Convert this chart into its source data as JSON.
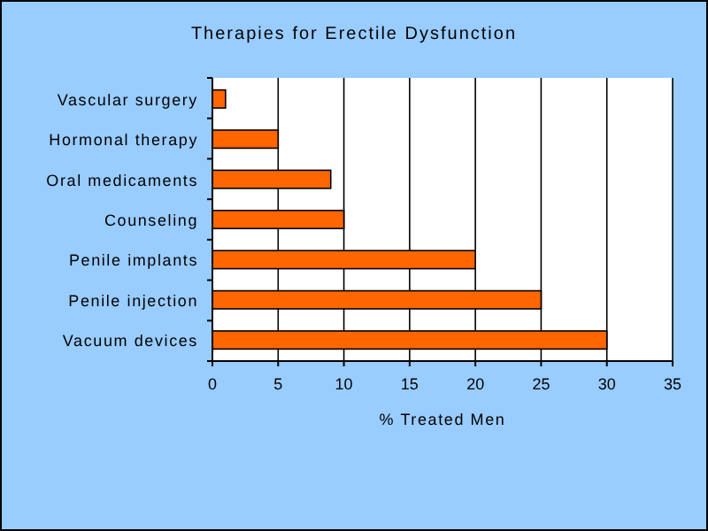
{
  "chart_data": {
    "type": "bar",
    "orientation": "horizontal",
    "title": "Therapies for Erectile Dysfunction",
    "xlabel": "% Treated Men",
    "categories": [
      "Vascular surgery",
      "Hormonal therapy",
      "Oral medicaments",
      "Counseling",
      "Penile implants",
      "Penile injection",
      "Vacuum devices"
    ],
    "values": [
      1,
      5,
      9,
      10,
      20,
      25,
      30
    ],
    "color": "#ff6600",
    "xlim": [
      0,
      35
    ],
    "xticks": [
      0,
      5,
      10,
      15,
      20,
      25,
      30,
      35
    ],
    "grid": "x"
  }
}
